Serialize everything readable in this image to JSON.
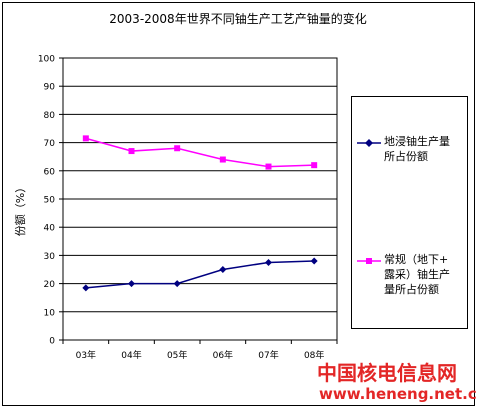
{
  "chart_data": {
    "type": "line",
    "title": "2003-2008年世界不同铀生产工艺产铀量的变化",
    "ylabel": "份额（%）",
    "xlabel": "",
    "categories": [
      "03年",
      "04年",
      "05年",
      "06年",
      "07年",
      "08年"
    ],
    "ylim": [
      0,
      100
    ],
    "yticks": [
      0,
      10,
      20,
      30,
      40,
      50,
      60,
      70,
      80,
      90,
      100
    ],
    "grid": true,
    "legend_position": "right",
    "series": [
      {
        "name": "地浸铀生产量所占份额",
        "values": [
          18.5,
          20,
          20,
          25,
          27.5,
          28
        ],
        "color": "#000080",
        "marker": "diamond"
      },
      {
        "name": "常规（地下+露采）铀生产量所占份额",
        "values": [
          71.5,
          67,
          68,
          64,
          61.5,
          62
        ],
        "color": "#ff00ff",
        "marker": "square"
      }
    ]
  },
  "legend": {
    "item1_line1": "地浸铀生产量",
    "item1_line2": "所占份额",
    "item2_line1": "常规（地下+",
    "item2_line2": "露采）铀生产",
    "item2_line3": "量所占份额"
  },
  "watermark": {
    "name": "中国核电信息网",
    "url": "www.heneng.net.cn",
    "color": "#e32626"
  }
}
